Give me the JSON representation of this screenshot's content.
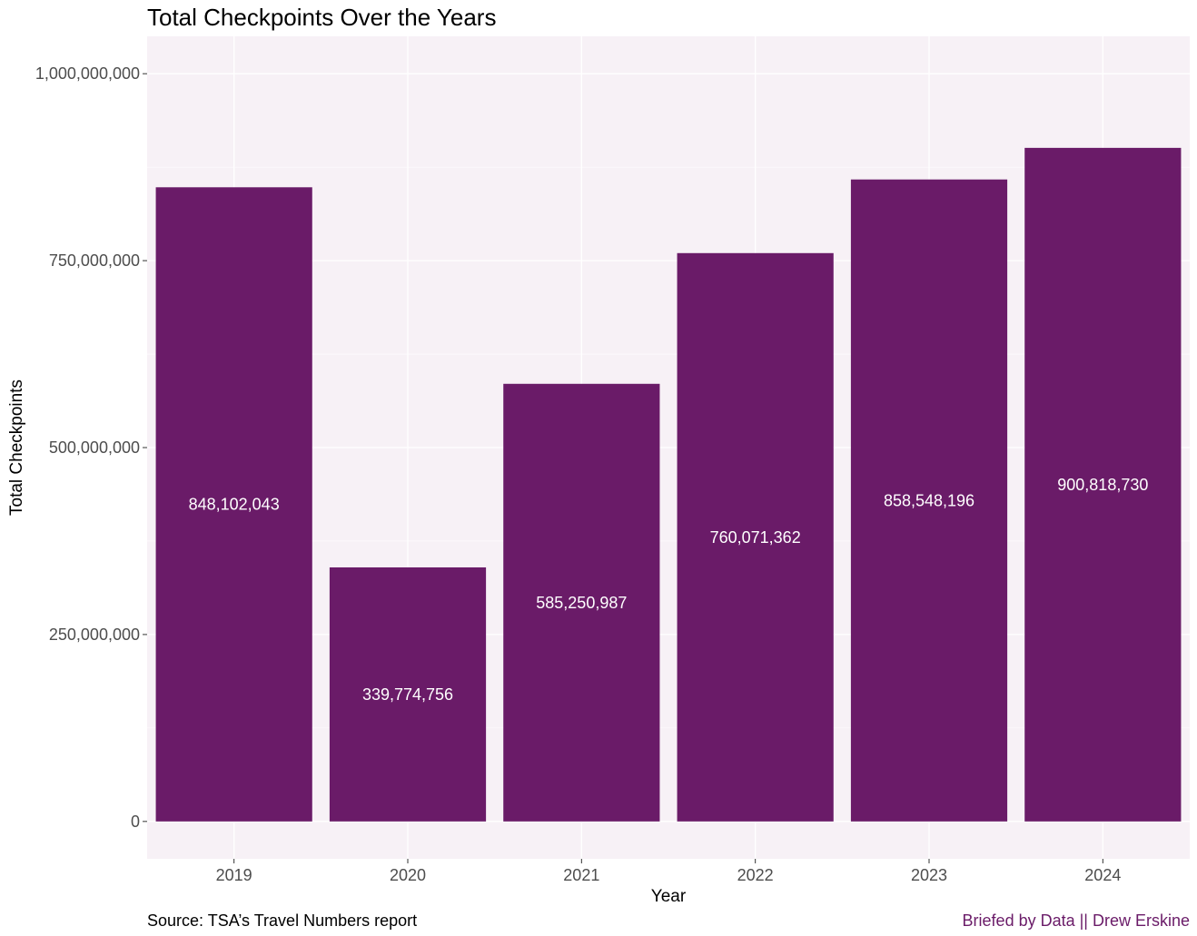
{
  "chart_data": {
    "type": "bar",
    "title": "Total Checkpoints Over the Years",
    "xlabel": "Year",
    "ylabel": "Total Checkpoints",
    "categories": [
      "2019",
      "2020",
      "2021",
      "2022",
      "2023",
      "2024"
    ],
    "values": [
      848102043,
      339774756,
      585250987,
      760071362,
      858548196,
      900818730
    ],
    "value_labels": [
      "848,102,043",
      "339,774,756",
      "585,250,987",
      "760,071,362",
      "858,548,196",
      "900,818,730"
    ],
    "y_ticks": [
      0,
      250000000,
      500000000,
      750000000,
      1000000000
    ],
    "y_tick_labels": [
      "0",
      "250,000,000",
      "500,000,000",
      "750,000,000",
      "1,000,000,000"
    ],
    "ylim": [
      -50000000,
      1050000000
    ],
    "grid": true,
    "legend": "none",
    "colors": {
      "bar": "#6a1b68",
      "panel_background": "#f7f1f6",
      "grid": "#ffffff",
      "bar_label": "#ffffff",
      "tick_label": "#4d4d4d",
      "brand": "#6a1b68"
    }
  },
  "caption": {
    "source": "Source: TSA’s Travel Numbers report",
    "brand": "Briefed by Data || Drew Erskine"
  }
}
